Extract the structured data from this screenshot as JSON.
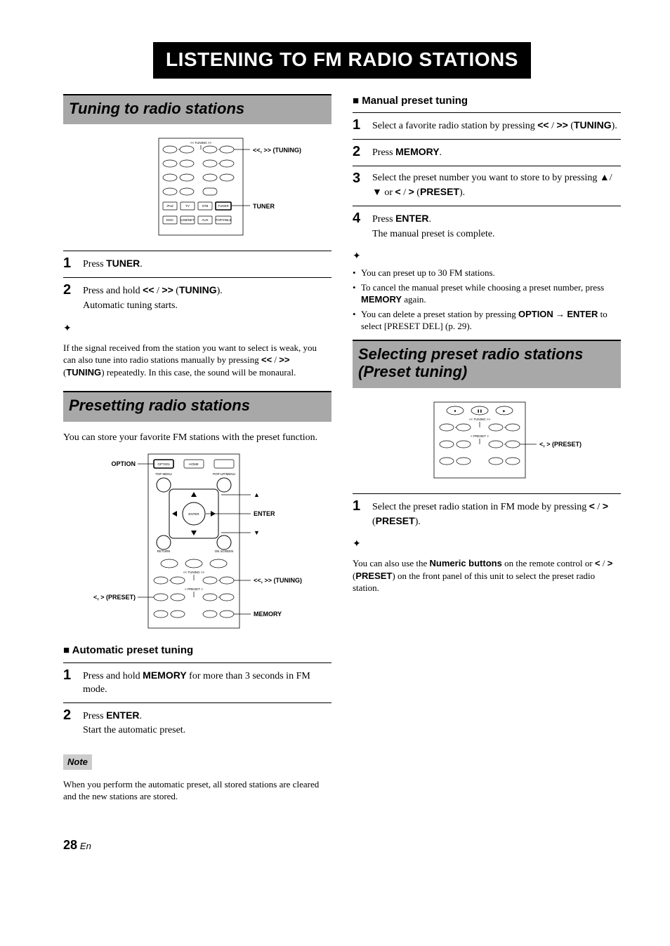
{
  "page": {
    "title": "LISTENING TO FM RADIO STATIONS",
    "footer_num": "28",
    "footer_lang": "En"
  },
  "left": {
    "section1": {
      "heading": "Tuning to radio stations",
      "diagram": {
        "callouts": {
          "tuning": "<<, >> (TUNING)",
          "tuner": "TUNER"
        },
        "row_tuning": "<< TUNING >>",
        "btns_row1": [
          "◀◀",
          "▶▶",
          "◀◀",
          "▶▶"
        ],
        "btns_row2": [
          "DIMMER",
          "STATUS",
          "|◀◀",
          "▶▶|"
        ],
        "btns_row3": [
          "PIP",
          "SUBTITLE",
          "AUDIO",
          "MEMORY"
        ],
        "btns_row4": [
          "SHUFFLE",
          "REPEAT",
          "A/B"
        ],
        "btns_row5": [
          "iPod",
          "TV",
          "STB",
          "TUNER"
        ],
        "btns_row6": [
          "DISC",
          "USB/NET",
          "AUX",
          "PORTABLE"
        ]
      },
      "steps": [
        {
          "n": "1",
          "body": "Press <b>TUNER</b>."
        },
        {
          "n": "2",
          "body": "Press and hold <b>&lt;&lt;</b> / <b>&gt;&gt;</b> (<b>TUNING</b>).",
          "sub": "Automatic tuning starts."
        }
      ],
      "tip": "If the signal received from the station you want to select is weak, you can also tune into radio stations manually by pressing <b>&lt;&lt;</b> / <b>&gt;&gt;</b> (<b>TUNING</b>) repeatedly. In this case, the sound will be monaural."
    },
    "section2": {
      "heading": "Presetting radio stations",
      "intro": "You can store your favorite FM stations with the preset function.",
      "diagram": {
        "callouts": {
          "option": "OPTION",
          "up": "▲",
          "enter": "ENTER",
          "down": "▼",
          "tuning": "<<, >> (TUNING)",
          "preset": "<, > (PRESET)",
          "memory": "MEMORY"
        },
        "top_labels": {
          "left": "TOP MENU",
          "right": "POP-UP/MENU"
        },
        "bottom_labels": {
          "left": "RETURN",
          "right": "ON SCREEN"
        },
        "btns_top": [
          "OPTION",
          "HOME",
          "—"
        ],
        "center": "ENTER",
        "btns_sb": [
          "■",
          "❚❚",
          "▶"
        ],
        "row_tuning": "<< TUNING >>",
        "btns_t": [
          "◀◀",
          "▶▶",
          "◀◀",
          "▶▶"
        ],
        "row_preset": "< PRESET >",
        "btns_p": [
          "DIMMER",
          "STATUS",
          "◀◀",
          "▶▶"
        ],
        "btns_m": [
          "PIP",
          "SUBTITLE",
          "AUDIO",
          "MEMORY"
        ]
      },
      "sub_auto": "■ Automatic preset tuning",
      "auto_steps": [
        {
          "n": "1",
          "body": "Press and hold <b>MEMORY</b> for more than 3 seconds in FM mode."
        },
        {
          "n": "2",
          "body": "Press <b>ENTER</b>.",
          "sub": "Start the automatic preset."
        }
      ],
      "note_label": "Note",
      "note_body": "When you perform the automatic preset, all stored stations are cleared and the new stations are stored."
    }
  },
  "right": {
    "sub_manual": "■ Manual preset tuning",
    "manual_steps": [
      {
        "n": "1",
        "body": "Select a favorite radio station by pressing <b>&lt;&lt;</b> / <b>&gt;&gt;</b> (<b>TUNING</b>)."
      },
      {
        "n": "2",
        "body": "Press <b>MEMORY</b>."
      },
      {
        "n": "3",
        "body": "Select the preset number you want to store to by pressing ▲/▼ or <b>&lt;</b> / <b>&gt;</b> (<b>PRESET</b>)."
      },
      {
        "n": "4",
        "body": "Press <b>ENTER</b>.",
        "sub": "The manual preset is complete."
      }
    ],
    "tips": [
      "You can preset up to 30 FM stations.",
      "To cancel the manual preset while choosing a preset number, press <b>MEMORY</b> again.",
      "You can delete a preset station by pressing <b>OPTION</b> → <b>ENTER</b> to select [PRESET DEL] (p. 29)."
    ],
    "section3": {
      "heading": "Selecting preset radio stations (Preset tuning)",
      "diagram": {
        "callouts": {
          "preset": "<, > (PRESET)"
        },
        "btns_sb": [
          "■",
          "❚❚",
          "▶"
        ],
        "row_tuning": "<< TUNING >>",
        "btns_t": [
          "◀◀",
          "▶▶",
          "◀◀",
          "▶▶"
        ],
        "row_preset": "< PRESET >",
        "btns_p": [
          "DIMMER",
          "STATUS",
          "◀◀",
          "▶▶"
        ],
        "btns_m": [
          "PIP",
          "SUBTITLE",
          "AUDIO",
          "MEMORY"
        ]
      },
      "steps": [
        {
          "n": "1",
          "body": "Select the preset radio station in FM mode by pressing <b>&lt;</b> / <b>&gt;</b> (<b>PRESET</b>)."
        }
      ],
      "tip": "You can also use the <b>Numeric buttons</b> on the remote control or <b>&lt;</b> / <b>&gt;</b> (<b>PRESET</b>) on the front panel of this unit to select the preset radio station."
    }
  },
  "style": {
    "colors": {
      "heading_bg": "#a8a8a8",
      "note_bg": "#cccccc",
      "title_bg": "#000000",
      "title_fg": "#ffffff",
      "text": "#000000"
    },
    "fonts": {
      "serif": "Times New Roman",
      "sans": "Arial"
    }
  }
}
